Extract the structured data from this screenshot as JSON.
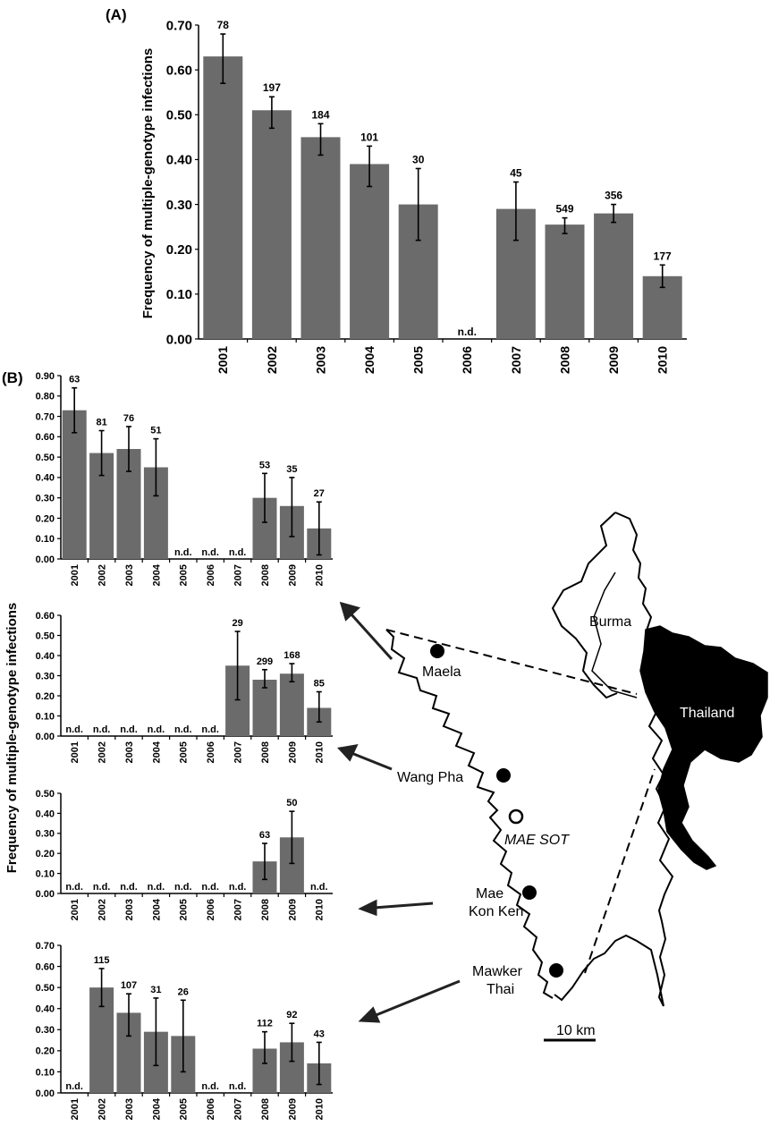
{
  "figure": {
    "panel_a_label": "(A)",
    "panel_b_label": "(B)",
    "map_labels": {
      "burma": "Burma",
      "thailand": "Thailand",
      "maela": "Maela",
      "wang_pha": "Wang Pha",
      "mae_sot": "MAE SOT",
      "mae_kon_ken_line1": "Mae",
      "mae_kon_ken_line2": "Kon Ken",
      "mawker_thai_line1": "Mawker",
      "mawker_thai_line2": "Thai",
      "scale_bar": "10 km"
    },
    "colors": {
      "bar": "#6b6b6b",
      "axis": "#000000",
      "text": "#000000"
    }
  },
  "chart_data": [
    {
      "id": "A",
      "type": "bar",
      "ylabel": "Frequency of multiple-genotype infections",
      "categories": [
        "2001",
        "2002",
        "2003",
        "2004",
        "2005",
        "2006",
        "2007",
        "2008",
        "2009",
        "2010"
      ],
      "values": [
        0.63,
        0.51,
        0.45,
        0.39,
        0.3,
        null,
        0.29,
        0.255,
        0.28,
        0.14
      ],
      "err_low": [
        0.57,
        0.47,
        0.41,
        0.34,
        0.22,
        null,
        0.22,
        0.235,
        0.26,
        0.115
      ],
      "err_high": [
        0.68,
        0.54,
        0.48,
        0.43,
        0.38,
        null,
        0.35,
        0.27,
        0.3,
        0.165
      ],
      "n_labels": [
        "78",
        "197",
        "184",
        "101",
        "30",
        "n.d.",
        "45",
        "549",
        "356",
        "177"
      ],
      "ylim": [
        0,
        0.7
      ],
      "yticks": [
        "0.00",
        "0.10",
        "0.20",
        "0.30",
        "0.40",
        "0.50",
        "0.60",
        "0.70"
      ],
      "grid": false
    },
    {
      "id": "B1",
      "type": "bar",
      "ylabel": "Frequency of multiple-genotype infections",
      "categories": [
        "2001",
        "2002",
        "2003",
        "2004",
        "2005",
        "2006",
        "2007",
        "2008",
        "2009",
        "2010"
      ],
      "values": [
        0.73,
        0.52,
        0.54,
        0.45,
        null,
        null,
        null,
        0.3,
        0.26,
        0.15
      ],
      "err_low": [
        0.62,
        0.41,
        0.43,
        0.31,
        null,
        null,
        null,
        0.18,
        0.11,
        0.02
      ],
      "err_high": [
        0.84,
        0.63,
        0.65,
        0.59,
        null,
        null,
        null,
        0.42,
        0.4,
        0.28
      ],
      "n_labels": [
        "63",
        "81",
        "76",
        "51",
        "n.d.",
        "n.d.",
        "n.d.",
        "53",
        "35",
        "27"
      ],
      "ylim": [
        0,
        0.9
      ],
      "yticks": [
        "0.00",
        "0.10",
        "0.20",
        "0.30",
        "0.40",
        "0.50",
        "0.60",
        "0.70",
        "0.80",
        "0.90"
      ],
      "grid": false
    },
    {
      "id": "B2",
      "type": "bar",
      "categories": [
        "2001",
        "2002",
        "2003",
        "2004",
        "2005",
        "2006",
        "2007",
        "2008",
        "2009",
        "2010"
      ],
      "values": [
        null,
        null,
        null,
        null,
        null,
        null,
        0.35,
        0.28,
        0.31,
        0.14
      ],
      "err_low": [
        null,
        null,
        null,
        null,
        null,
        null,
        0.18,
        0.24,
        0.27,
        0.07
      ],
      "err_high": [
        null,
        null,
        null,
        null,
        null,
        null,
        0.52,
        0.33,
        0.36,
        0.22
      ],
      "n_labels": [
        "n.d.",
        "n.d.",
        "n.d.",
        "n.d.",
        "n.d.",
        "n.d.",
        "29",
        "299",
        "168",
        "85"
      ],
      "ylim": [
        0,
        0.6
      ],
      "yticks": [
        "0.00",
        "0.10",
        "0.20",
        "0.30",
        "0.40",
        "0.50",
        "0.60"
      ],
      "grid": false
    },
    {
      "id": "B3",
      "type": "bar",
      "categories": [
        "2001",
        "2002",
        "2003",
        "2004",
        "2005",
        "2006",
        "2007",
        "2008",
        "2009",
        "2010"
      ],
      "values": [
        null,
        null,
        null,
        null,
        null,
        null,
        null,
        0.16,
        0.28,
        null
      ],
      "err_low": [
        null,
        null,
        null,
        null,
        null,
        null,
        null,
        0.07,
        0.15,
        null
      ],
      "err_high": [
        null,
        null,
        null,
        null,
        null,
        null,
        null,
        0.25,
        0.41,
        null
      ],
      "n_labels": [
        "n.d.",
        "n.d.",
        "n.d.",
        "n.d.",
        "n.d.",
        "n.d.",
        "n.d.",
        "63",
        "50",
        "n.d."
      ],
      "ylim": [
        0,
        0.5
      ],
      "yticks": [
        "0.00",
        "0.10",
        "0.20",
        "0.30",
        "0.40",
        "0.50"
      ],
      "grid": false
    },
    {
      "id": "B4",
      "type": "bar",
      "categories": [
        "2001",
        "2002",
        "2003",
        "2004",
        "2005",
        "2006",
        "2007",
        "2008",
        "2009",
        "2010"
      ],
      "values": [
        null,
        0.5,
        0.38,
        0.29,
        0.27,
        null,
        null,
        0.21,
        0.24,
        0.14
      ],
      "err_low": [
        null,
        0.41,
        0.27,
        0.13,
        0.1,
        null,
        null,
        0.14,
        0.15,
        0.04
      ],
      "err_high": [
        null,
        0.59,
        0.47,
        0.45,
        0.44,
        null,
        null,
        0.29,
        0.33,
        0.24
      ],
      "n_labels": [
        "n.d.",
        "115",
        "107",
        "31",
        "26",
        "n.d.",
        "n.d.",
        "112",
        "92",
        "43"
      ],
      "ylim": [
        0,
        0.7
      ],
      "yticks": [
        "0.00",
        "0.10",
        "0.20",
        "0.30",
        "0.40",
        "0.50",
        "0.60",
        "0.70"
      ],
      "grid": false
    }
  ]
}
